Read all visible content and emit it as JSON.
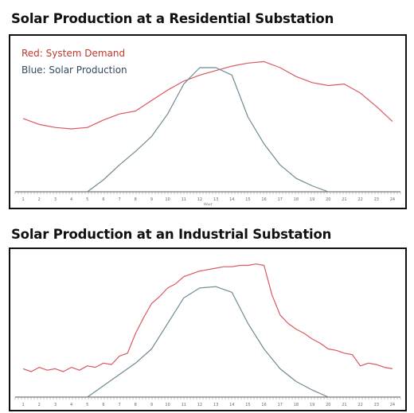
{
  "colors": {
    "demand": "#d9595f",
    "solar": "#6f8a92",
    "legend_red": "#c0392b",
    "legend_blue": "#34495e",
    "axis": "#555555"
  },
  "chart_data": [
    {
      "type": "line",
      "title": "Solar Production at a Residential Substation",
      "legend": {
        "red": "Red: System Demand",
        "blue": "Blue: Solar Production",
        "placement": "top-left"
      },
      "xlabel": "Hour",
      "x_ticks": [
        "1",
        "2",
        "3",
        "4",
        "5",
        "6",
        "7",
        "8",
        "9",
        "10",
        "11",
        "12",
        "13",
        "14",
        "15",
        "16",
        "17",
        "18",
        "19",
        "20",
        "21",
        "22",
        "23",
        "24"
      ],
      "xlim": [
        0.5,
        24.5
      ],
      "ylim": [
        0,
        100
      ],
      "grid": false,
      "series": [
        {
          "name": "System Demand",
          "color_key": "demand",
          "x": [
            1,
            2,
            3,
            4,
            5,
            6,
            7,
            8,
            9,
            10,
            11,
            12,
            13,
            14,
            15,
            16,
            17,
            18,
            19,
            20,
            21,
            22,
            23,
            24
          ],
          "values": [
            49,
            45,
            43,
            42,
            43,
            48,
            52,
            54,
            61,
            68,
            74,
            78,
            81,
            84,
            86,
            87,
            83,
            77,
            73,
            71,
            72,
            66,
            57,
            47
          ]
        },
        {
          "name": "Solar Production",
          "color_key": "solar",
          "x": [
            5,
            6,
            7,
            8,
            9,
            10,
            11,
            12,
            13,
            14,
            15,
            16,
            17,
            18,
            19,
            20
          ],
          "values": [
            0,
            8,
            18,
            27,
            37,
            52,
            72,
            83,
            83,
            78,
            50,
            32,
            18,
            9,
            4,
            0
          ]
        }
      ]
    },
    {
      "type": "line",
      "title": "Solar Production at an Industrial Substation",
      "x_ticks": [
        "1",
        "2",
        "3",
        "4",
        "5",
        "6",
        "7",
        "8",
        "9",
        "10",
        "11",
        "12",
        "13",
        "14",
        "15",
        "16",
        "17",
        "18",
        "19",
        "20",
        "21",
        "22",
        "23",
        "24"
      ],
      "xlim": [
        0.5,
        24.5
      ],
      "ylim": [
        0,
        100
      ],
      "grid": false,
      "series": [
        {
          "name": "System Demand",
          "color_key": "demand",
          "x": [
            1,
            1.5,
            2,
            2.5,
            3,
            3.5,
            4,
            4.5,
            5,
            5.5,
            6,
            6.5,
            7,
            7.5,
            8,
            8.5,
            9,
            9.5,
            10,
            10.5,
            11,
            11.5,
            12,
            12.5,
            13,
            13.5,
            14,
            14.5,
            15,
            15.5,
            16,
            16.5,
            17,
            17.5,
            18,
            18.5,
            19,
            19.5,
            20,
            20.5,
            21,
            21.5,
            22,
            22.5,
            23,
            23.5,
            24
          ],
          "values": [
            20,
            18,
            21,
            19,
            20,
            18,
            21,
            19,
            22,
            21,
            24,
            23,
            29,
            31,
            45,
            56,
            66,
            71,
            77,
            80,
            85,
            87,
            89,
            90,
            91,
            92,
            92,
            93,
            93,
            94,
            93,
            72,
            58,
            52,
            48,
            45,
            41,
            38,
            34,
            33,
            31,
            30,
            22,
            24,
            23,
            21,
            20
          ]
        },
        {
          "name": "Solar Production",
          "color_key": "solar",
          "x": [
            5,
            6,
            7,
            8,
            9,
            10,
            11,
            12,
            13,
            14,
            15,
            16,
            17,
            18,
            19,
            20
          ],
          "values": [
            0,
            8,
            16,
            24,
            34,
            52,
            70,
            77,
            78,
            74,
            52,
            34,
            20,
            11,
            5,
            0
          ]
        }
      ]
    }
  ]
}
